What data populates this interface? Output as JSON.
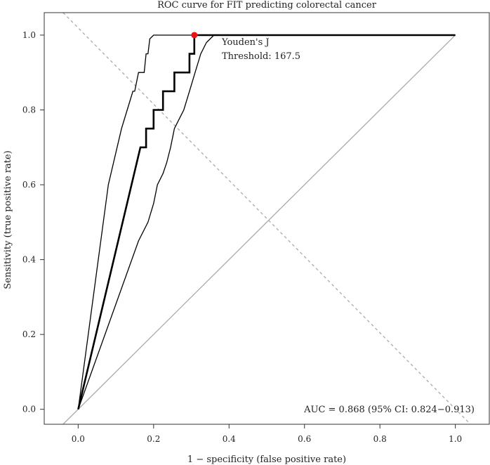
{
  "chart_data": {
    "type": "line",
    "title": "ROC curve for FIT predicting colorectal cancer",
    "xlabel": "1 − specificity (false positive rate)",
    "ylabel": "Sensitivity (true positive rate)",
    "xlim": [
      -0.09,
      1.09
    ],
    "ylim": [
      -0.04,
      1.06
    ],
    "xticks": [
      "0.0",
      "0.2",
      "0.4",
      "0.6",
      "0.8",
      "1.0"
    ],
    "yticks": [
      "0.0",
      "0.2",
      "0.4",
      "0.6",
      "0.8",
      "1.0"
    ],
    "grid": false,
    "series": [
      {
        "role": "roc",
        "color": "#000000",
        "x": [
          0.0,
          0.165,
          0.18,
          0.18,
          0.2,
          0.2,
          0.225,
          0.225,
          0.255,
          0.255,
          0.295,
          0.295,
          0.308,
          0.308,
          1.0
        ],
        "y": [
          0.0,
          0.7,
          0.7,
          0.75,
          0.75,
          0.8,
          0.8,
          0.85,
          0.85,
          0.9,
          0.9,
          0.95,
          0.95,
          1.0,
          1.0
        ]
      },
      {
        "role": "ci-upper",
        "color": "#000000",
        "x": [
          0.0,
          0.08,
          0.115,
          0.13,
          0.145,
          0.15,
          0.16,
          0.175,
          0.18,
          0.185,
          0.19,
          0.2,
          0.21,
          0.22,
          1.0
        ],
        "y": [
          0.0,
          0.6,
          0.75,
          0.8,
          0.85,
          0.85,
          0.9,
          0.9,
          0.95,
          0.95,
          0.99,
          1.0,
          1.0,
          1.0,
          1.0
        ]
      },
      {
        "role": "ci-lower",
        "color": "#000000",
        "x": [
          0.0,
          0.16,
          0.185,
          0.2,
          0.21,
          0.225,
          0.235,
          0.245,
          0.255,
          0.27,
          0.28,
          0.295,
          0.31,
          0.325,
          0.34,
          0.36
        ],
        "y": [
          0.0,
          0.45,
          0.5,
          0.55,
          0.6,
          0.63,
          0.66,
          0.7,
          0.75,
          0.78,
          0.8,
          0.85,
          0.9,
          0.95,
          0.98,
          1.0
        ]
      }
    ],
    "reference_lines": [
      {
        "role": "chance-diagonal",
        "x": [
          -0.04,
          1.0
        ],
        "y": [
          -0.04,
          1.0
        ],
        "color": "#aaaaaa",
        "style": "solid"
      },
      {
        "role": "youden-diagonal",
        "x": [
          -0.04,
          1.04
        ],
        "y": [
          1.06,
          -0.04
        ],
        "color": "#aaaaaa",
        "style": "dashed"
      }
    ],
    "optimal_point": {
      "x": 0.308,
      "y": 1.0,
      "color": "#ee1111"
    },
    "annotations": {
      "youden_label": "Youden's J",
      "threshold_label": "Threshold: 167.5",
      "auc_label": "AUC = 0.868 (95% CI: 0.824−0.913)"
    }
  }
}
